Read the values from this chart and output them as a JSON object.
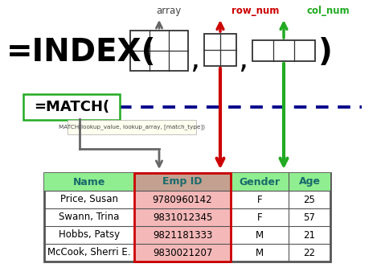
{
  "bg_color": "#ffffff",
  "array_label": "array",
  "row_num_label": "row_num",
  "col_num_label": "col_num",
  "match_text": "=MATCH(",
  "tooltip_text": "MATCH(lookup_value, lookup_array, [match_type])",
  "table_headers": [
    "Name",
    "Emp ID",
    "Gender",
    "Age"
  ],
  "table_data": [
    [
      "Price, Susan",
      "9780960142",
      "F",
      "25"
    ],
    [
      "Swann, Trina",
      "9831012345",
      "F",
      "57"
    ],
    [
      "Hobbs, Patsy",
      "9821181333",
      "M",
      "21"
    ],
    [
      "McCook, Sherri E.",
      "9830021207",
      "M",
      "22"
    ]
  ],
  "header_bg": "#90EE90",
  "header_text_color": "#1a6b6b",
  "table_border_color": "#555555",
  "highlight_col_bg": "#f4b8b8",
  "highlight_header_bg": "#c4a090",
  "highlight_col_border": "#cc0000",
  "arrow_gray": "#666666",
  "arrow_red": "#cc0000",
  "arrow_green": "#22aa22",
  "dashed_line_color": "#00008b",
  "match_box_border": "#22aa22",
  "index_fontsize": 28,
  "label_fontsize": 8.5
}
